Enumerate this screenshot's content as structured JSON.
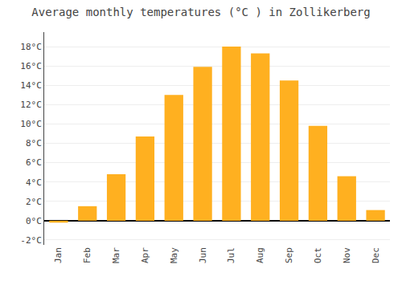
{
  "chart_data": {
    "type": "bar",
    "title": "Average monthly temperatures (°C ) in Zollikerberg",
    "categories": [
      "Jan",
      "Feb",
      "Mar",
      "Apr",
      "May",
      "Jun",
      "Jul",
      "Aug",
      "Sep",
      "Oct",
      "Nov",
      "Dec"
    ],
    "values": [
      -0.2,
      1.5,
      4.8,
      8.7,
      13.0,
      15.9,
      18.0,
      17.3,
      14.5,
      9.8,
      4.6,
      1.1
    ],
    "color": "#FFB020",
    "ylim": [
      -2.5,
      19.5
    ],
    "yticks": [
      {
        "value": -2,
        "label": "-2°C"
      },
      {
        "value": 0,
        "label": "0°C"
      },
      {
        "value": 2,
        "label": "2°C"
      },
      {
        "value": 4,
        "label": "4°C"
      },
      {
        "value": 6,
        "label": "6°C"
      },
      {
        "value": 8,
        "label": "8°C"
      },
      {
        "value": 10,
        "label": "10°C"
      },
      {
        "value": 12,
        "label": "12°C"
      },
      {
        "value": 14,
        "label": "14°C"
      },
      {
        "value": 16,
        "label": "16°C"
      },
      {
        "value": 18,
        "label": "18°C"
      }
    ],
    "grid": true
  }
}
